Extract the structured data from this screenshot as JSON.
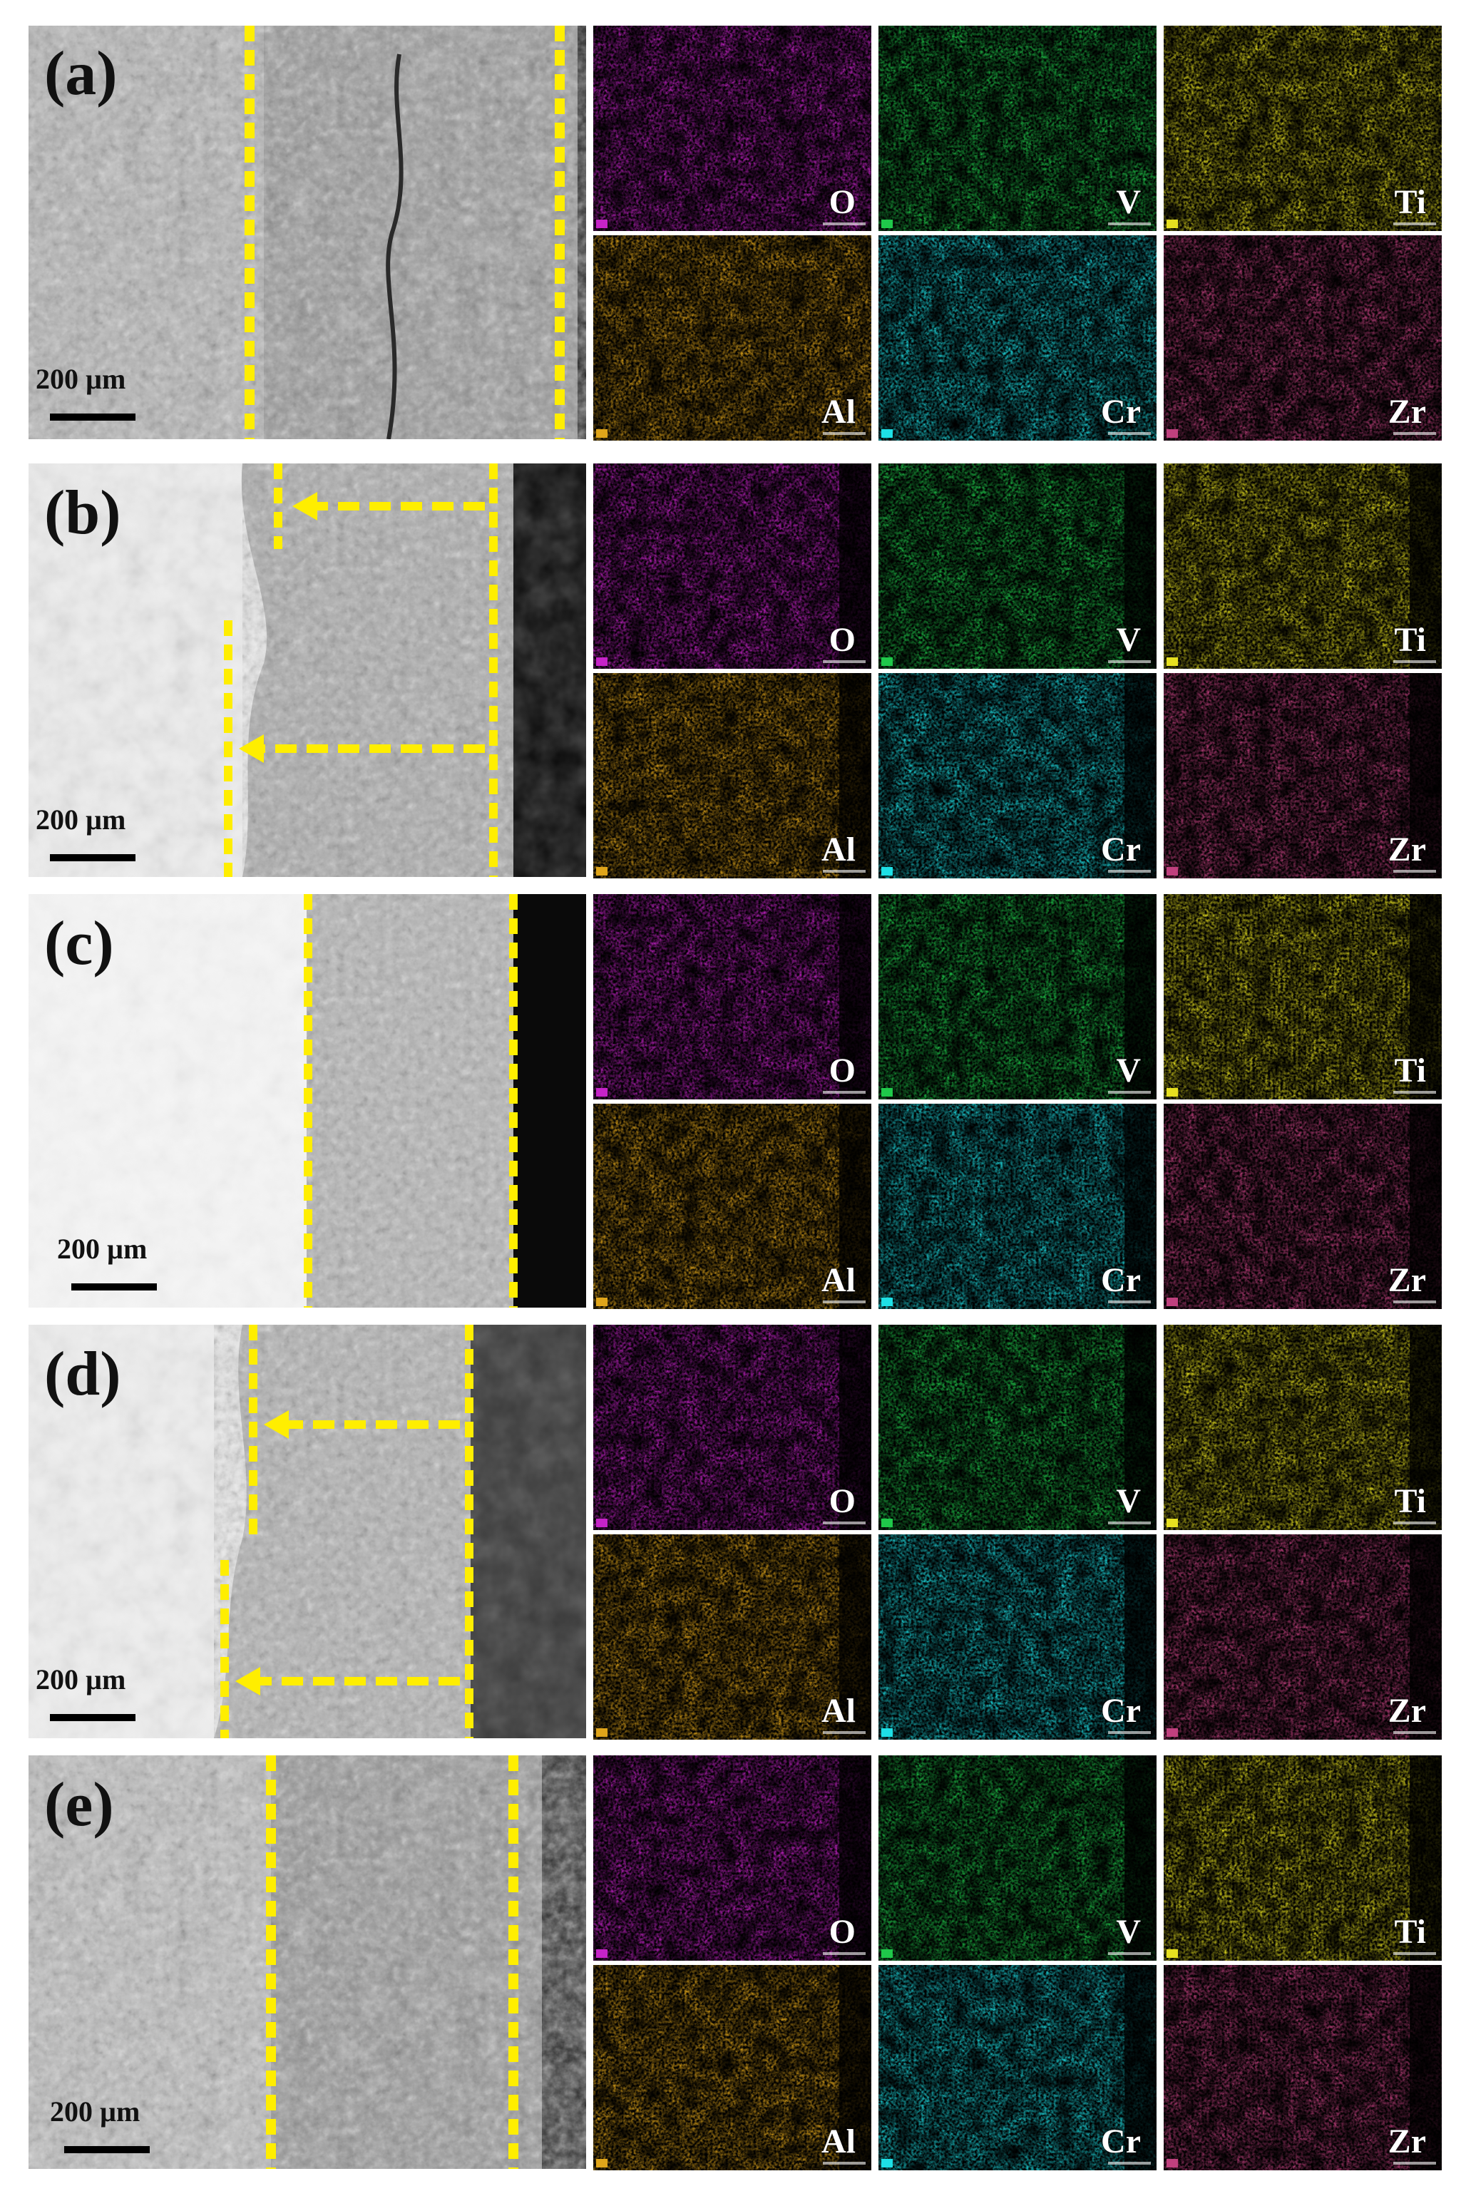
{
  "figure": {
    "scale_text": "200 µm",
    "colors": {
      "O": "#c623c8",
      "V": "#1fc84a",
      "Ti": "#e6e020",
      "Al": "#e0a51a",
      "Cr": "#1ee0e6",
      "Zr": "#c0407e",
      "guide": "#ffee00"
    },
    "panels": [
      {
        "label": "(a)",
        "elements": [
          "O",
          "V",
          "Ti",
          "Al",
          "Cr",
          "Zr"
        ]
      },
      {
        "label": "(b)",
        "elements": [
          "O",
          "V",
          "Ti",
          "Al",
          "Cr",
          "Zr"
        ]
      },
      {
        "label": "(c)",
        "elements": [
          "O",
          "V",
          "Ti",
          "Al",
          "Cr",
          "Zr"
        ]
      },
      {
        "label": "(d)",
        "elements": [
          "O",
          "V",
          "Ti",
          "Al",
          "Cr",
          "Zr"
        ]
      },
      {
        "label": "(e)",
        "elements": [
          "O",
          "V",
          "Ti",
          "Al",
          "Cr",
          "Zr"
        ]
      }
    ]
  }
}
